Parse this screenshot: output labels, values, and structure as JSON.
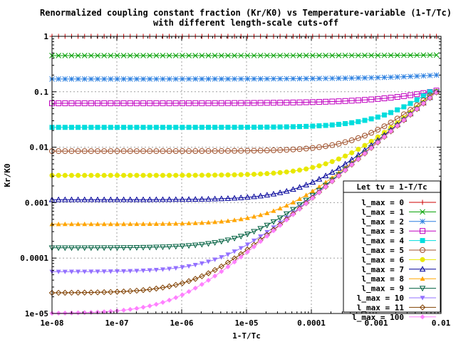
{
  "chart_data": {
    "type": "line",
    "title": "Renormalized coupling constant fraction (Kr/K0) vs Temperature-variable (1-T/Tc)",
    "subtitle": "with different length-scale cuts-off",
    "xlabel": "1-T/Tc",
    "ylabel": "Kr/K0",
    "xscale": "log",
    "yscale": "log",
    "xlim": [
      1e-08,
      0.01
    ],
    "ylim": [
      1e-05,
      1
    ],
    "xticks": [
      "1e-08",
      "1e-07",
      "1e-06",
      "1e-05",
      "0.0001",
      "0.001",
      "0.01"
    ],
    "yticks": [
      "1e-05",
      "0.0001",
      "0.001",
      "0.01",
      "0.1",
      "1"
    ],
    "grid": true,
    "legend_position": "bottom-right",
    "legend_title": "Let tv = 1-T/Tc",
    "series": [
      {
        "name": "l_max = 0",
        "color": "#cc0000",
        "marker": "plus",
        "low": 1.0,
        "high": 1.0
      },
      {
        "name": "l_max = 1",
        "color": "#00a000",
        "marker": "cross",
        "low": 0.45,
        "high": 0.46
      },
      {
        "name": "l_max = 2",
        "color": "#2b7fe0",
        "marker": "star",
        "low": 0.17,
        "high": 0.2
      },
      {
        "name": "l_max = 3",
        "color": "#c000c0",
        "marker": "square-open",
        "low": 0.062,
        "high": 0.105
      },
      {
        "name": "l_max = 4",
        "color": "#00dddd",
        "marker": "square-filled",
        "low": 0.0228,
        "high": 0.1
      },
      {
        "name": "l_max = 5",
        "color": "#a0522d",
        "marker": "circle-open",
        "low": 0.0085,
        "high": 0.1
      },
      {
        "name": "l_max = 6",
        "color": "#e8e800",
        "marker": "circle-filled",
        "low": 0.0031,
        "high": 0.1
      },
      {
        "name": "l_max = 7",
        "color": "#000099",
        "marker": "triangle-open",
        "low": 0.00113,
        "high": 0.1
      },
      {
        "name": "l_max = 8",
        "color": "#ffa500",
        "marker": "triangle-filled",
        "low": 0.00041,
        "high": 0.1
      },
      {
        "name": "l_max = 9",
        "color": "#006040",
        "marker": "tri-down-open",
        "low": 0.000153,
        "high": 0.1
      },
      {
        "name": "l_max = 10",
        "color": "#9370ff",
        "marker": "tri-down-filled",
        "low": 5.65e-05,
        "high": 0.1
      },
      {
        "name": "l_max = 11",
        "color": "#804000",
        "marker": "diamond-open",
        "low": 2.35e-05,
        "high": 0.1
      },
      {
        "name": "l_max = 100",
        "color": "#ff80ff",
        "marker": "diamond-filled",
        "low": 1e-05,
        "high": 0.1
      }
    ]
  }
}
